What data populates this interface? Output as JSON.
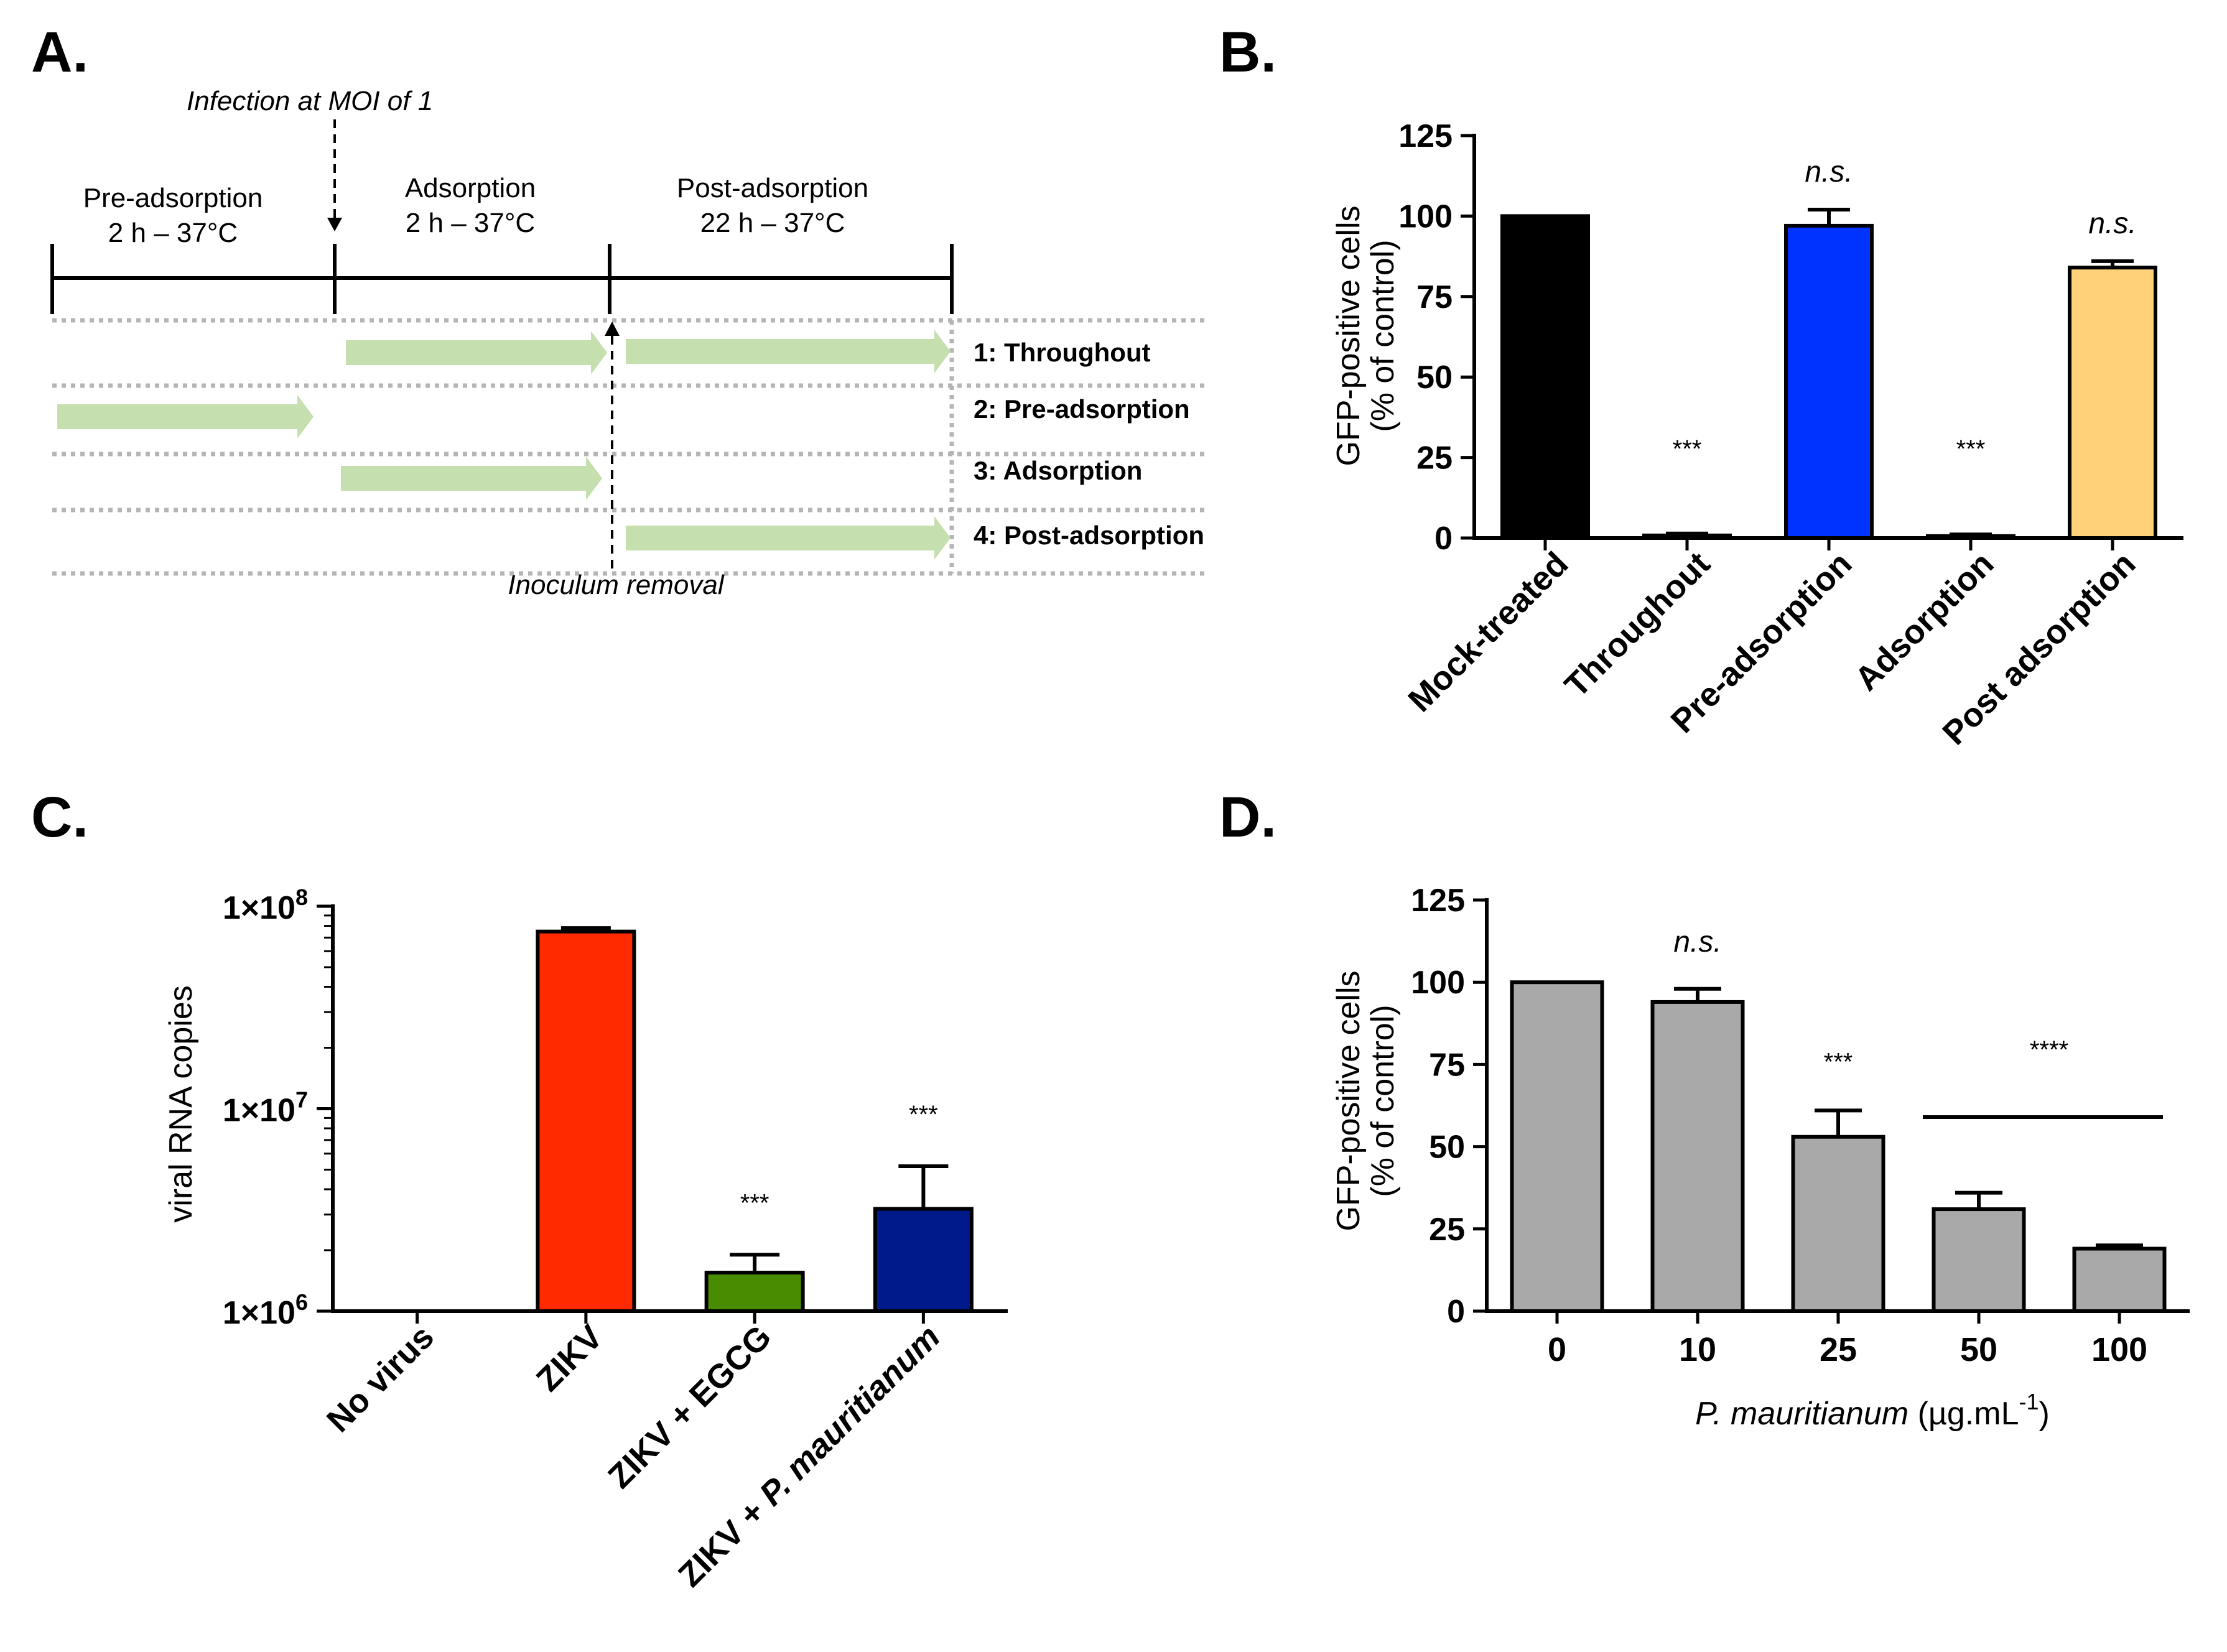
{
  "panels": {
    "a": "A.",
    "b": "B.",
    "c": "C.",
    "d": "D."
  },
  "timeline": {
    "infection_label": "Infection at MOI of 1",
    "removal_label": "Inoculum removal",
    "phases": [
      {
        "name": "Pre-adsorption",
        "time": "2 h – 37°C"
      },
      {
        "name": "Adsorption",
        "time": "2 h – 37°C"
      },
      {
        "name": "Post-adsorption",
        "time": "22 h – 37°C"
      }
    ],
    "rows": [
      "1: Throughout",
      "2: Pre-adsorption",
      "3: Adsorption",
      "4: Post-adsorption"
    ],
    "arrow_color": "#c6dfae"
  },
  "chart_data": [
    {
      "id": "B",
      "type": "bar",
      "ylabel_line1": "GFP-positive cells",
      "ylabel_line2": "(% of control)",
      "ylim": [
        0,
        125
      ],
      "yticks": [
        0,
        25,
        50,
        75,
        100,
        125
      ],
      "categories": [
        "Mock-treated",
        "Throughout",
        "Pre-adsorption",
        "Adsorption",
        "Post adsorption"
      ],
      "values": [
        100,
        0.8,
        97,
        0.6,
        84
      ],
      "errors": [
        0,
        0.6,
        5,
        0.5,
        2
      ],
      "colors": [
        "#000000",
        "#333333",
        "#0033ff",
        "#333333",
        "#ffd27a"
      ],
      "annotations": [
        "",
        "***",
        "n.s.",
        "***",
        "n.s."
      ]
    },
    {
      "id": "C",
      "type": "bar",
      "yscale": "log",
      "ylabel": "viral RNA copies",
      "ylim": [
        1000000,
        100000000
      ],
      "yticks": [
        "1×10",
        "1×10",
        "1×10"
      ],
      "ytick_exponents": [
        "6",
        "7",
        "8"
      ],
      "categories": [
        "No virus",
        "ZIKV",
        "ZIKV + EGCG",
        "ZIKV + "
      ],
      "category_italic": [
        "",
        "",
        "",
        "P. mauritianum"
      ],
      "values": [
        0,
        75000000,
        1550000,
        3200000
      ],
      "errors": [
        0,
        3000000,
        350000,
        2000000
      ],
      "colors": [
        "#ffffff",
        "#ff2a00",
        "#4a8c00",
        "#001a8c"
      ],
      "annotations": [
        "",
        "",
        "***",
        "***"
      ]
    },
    {
      "id": "D",
      "type": "bar",
      "ylabel_line1": "GFP-positive cells",
      "ylabel_line2": "(% of control)",
      "ylim": [
        0,
        125
      ],
      "yticks": [
        0,
        25,
        50,
        75,
        100,
        125
      ],
      "categories": [
        "0",
        "10",
        "25",
        "50",
        "100"
      ],
      "values": [
        100,
        94,
        53,
        31,
        19
      ],
      "errors": [
        0,
        4,
        8,
        5,
        1
      ],
      "color": "#a9a9a9",
      "annotations": [
        "",
        "n.s.",
        "***",
        "",
        ""
      ],
      "group_annotation": "****",
      "xlabel_italic": "P. mauritianum",
      "xlabel_units": " (µg.mL",
      "xlabel_superscript": "-1",
      "xlabel_close": ")"
    }
  ]
}
